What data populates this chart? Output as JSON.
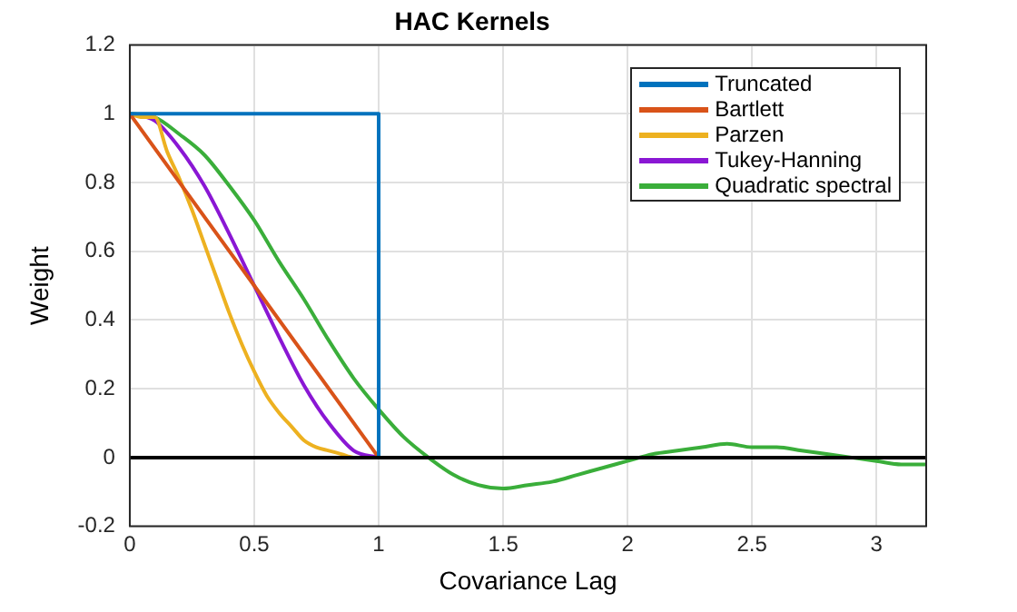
{
  "chart_data": {
    "type": "line",
    "title": "HAC Kernels",
    "xlabel": "Covariance Lag",
    "ylabel": "Weight",
    "xlim": [
      0,
      3.2
    ],
    "xticks": [
      0,
      0.5,
      1,
      1.5,
      2,
      2.5,
      3
    ],
    "ylim": [
      -0.2,
      1.2
    ],
    "yticks": [
      -0.2,
      0,
      0.2,
      0.4,
      0.6,
      0.8,
      1,
      1.2
    ],
    "grid": true,
    "legend": "top right",
    "marker": "none",
    "line_style": "solid",
    "ref_lines": [
      {
        "axis": "y",
        "value": 0,
        "color": "#000000"
      }
    ],
    "series": [
      {
        "name": "Truncated",
        "color": "#0072bd",
        "x": [
          0,
          1,
          1
        ],
        "values": [
          1,
          1,
          0
        ]
      },
      {
        "name": "Bartlett",
        "color": "#d95319",
        "x": [
          0,
          1
        ],
        "values": [
          1,
          0
        ]
      },
      {
        "name": "Parzen",
        "color": "#edb120",
        "x": [
          0,
          0.05,
          0.1,
          0.15,
          0.2,
          0.25,
          0.3,
          0.35,
          0.4,
          0.45,
          0.5,
          0.55,
          0.6,
          0.65,
          0.7,
          0.75,
          0.8,
          0.85,
          0.9,
          0.95,
          1
        ],
        "values": [
          1,
          0.99,
          0.99,
          0.89,
          0.81,
          0.72,
          0.62,
          0.52,
          0.42,
          0.33,
          0.25,
          0.18,
          0.13,
          0.09,
          0.05,
          0.03,
          0.02,
          0.01,
          0,
          0,
          0
        ]
      },
      {
        "name": "Tukey-Hanning",
        "color": "#8a17d4",
        "x": [
          0,
          0.1,
          0.2,
          0.3,
          0.4,
          0.5,
          0.6,
          0.7,
          0.8,
          0.9,
          1
        ],
        "values": [
          1,
          0.98,
          0.9,
          0.79,
          0.65,
          0.5,
          0.35,
          0.21,
          0.1,
          0.02,
          0
        ]
      },
      {
        "name": "Quadratic spectral",
        "color": "#3aae3a",
        "x": [
          0,
          0.1,
          0.2,
          0.3,
          0.4,
          0.5,
          0.6,
          0.7,
          0.8,
          0.9,
          1,
          1.1,
          1.2,
          1.3,
          1.4,
          1.5,
          1.6,
          1.7,
          1.8,
          1.9,
          2,
          2.1,
          2.2,
          2.3,
          2.4,
          2.5,
          2.6,
          2.7,
          2.8,
          2.9,
          3,
          3.1,
          3.2
        ],
        "values": [
          1,
          0.99,
          0.94,
          0.88,
          0.79,
          0.69,
          0.57,
          0.46,
          0.34,
          0.23,
          0.14,
          0.06,
          0,
          -0.05,
          -0.08,
          -0.09,
          -0.08,
          -0.07,
          -0.05,
          -0.03,
          -0.01,
          0.01,
          0.02,
          0.03,
          0.04,
          0.03,
          0.03,
          0.02,
          0.01,
          0,
          -0.01,
          -0.02,
          -0.02
        ]
      }
    ]
  }
}
